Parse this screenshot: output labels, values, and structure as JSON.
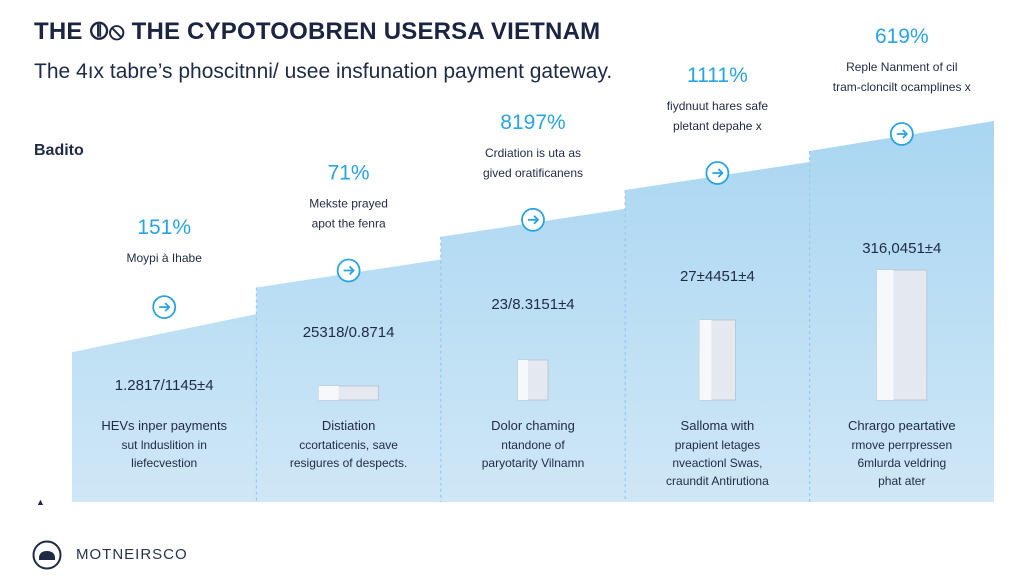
{
  "title": "THE ⦷⦸ THE CYPOTOOBREN USERSA VIETNAM",
  "subtitle": "The 4ıx tabre’s phoscitnni/ usee insfunation payment gateway.",
  "side_label": "Badito",
  "footer": {
    "brand": "MOTNEIRSCO",
    "logo_icon": "car-logo-icon"
  },
  "colors": {
    "area_fill": "#cfe7f6",
    "area_top": "#a9d6f2",
    "accent": "#2aa3e0",
    "divider": "#9cc7e8",
    "text": "#1f2a44"
  },
  "chart_data": {
    "type": "area",
    "steps": 5,
    "percent_labels": [
      "151%",
      "71%",
      "8197%",
      "1111%",
      "619%"
    ],
    "values": [
      "1.2817/1145±4",
      "25318/0.8714",
      "23/8.3151±4",
      "27±4451±4",
      "316,0451±4"
    ],
    "step_heights_relative": [
      0.41,
      0.55,
      0.68,
      0.8,
      0.9
    ],
    "callouts": [
      [
        "Moypi à Ihabe"
      ],
      [
        "Mekste prayed",
        "apot the fenra"
      ],
      [
        "Crdiation is uta as",
        "gived oratificanens"
      ],
      [
        "fiydnuut hares safe",
        "pletant depahe x"
      ],
      [
        "Reple Nanment of cil",
        "tram-cloncilt ocamplines x"
      ]
    ],
    "icons": [
      "swap-icon",
      "cycle-icon",
      "globe-icon",
      "arrow-right-icon",
      "arrow-right-icon"
    ],
    "captions": [
      {
        "title": "HEVs inper payments",
        "lines": [
          "sut lnduslition in",
          "liefecvestion"
        ]
      },
      {
        "title": "Distiation",
        "lines": [
          "ccortaticenis, save",
          "resigures of despects."
        ]
      },
      {
        "title": "Dolor chaming",
        "lines": [
          "ntandone of",
          "paryotarity Vilnamn"
        ]
      },
      {
        "title": "Salloma with",
        "lines": [
          "prapient letages",
          "nveactionl Swas,",
          "craundit Antirutiona"
        ]
      },
      {
        "title": "Chrargo peartative",
        "lines": [
          "rmove perrpressen",
          "6mlurda veldring",
          "phat ater"
        ]
      }
    ]
  }
}
